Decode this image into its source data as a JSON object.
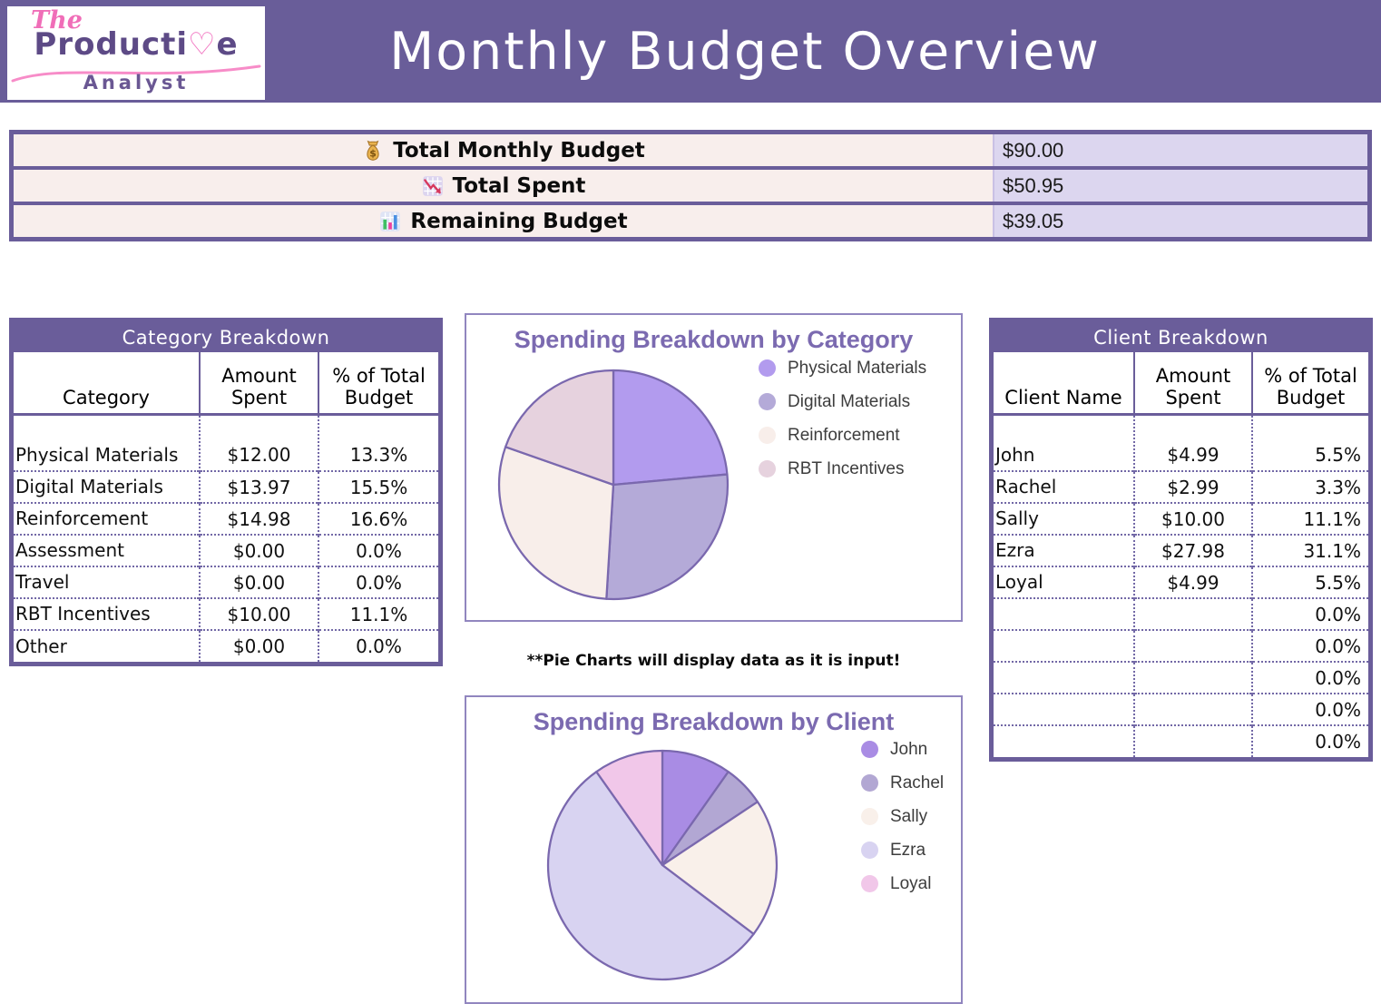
{
  "header": {
    "title": "Monthly Budget Overview",
    "logo": {
      "the": "The",
      "brand_pre": "Producti",
      "brand_heart": "♡",
      "brand_post": "e",
      "sub": "Analyst"
    }
  },
  "summary": {
    "rows": [
      {
        "icon": "money-bag-icon",
        "label": "Total Monthly Budget",
        "value": "$90.00"
      },
      {
        "icon": "chart-down-icon",
        "label": "Total Spent",
        "value": "$50.95"
      },
      {
        "icon": "bar-chart-icon",
        "label": "Remaining Budget",
        "value": "$39.05"
      }
    ]
  },
  "category_table": {
    "title": "Category Breakdown",
    "headers": [
      "Category",
      "Amount Spent",
      "% of Total Budget"
    ],
    "rows": [
      {
        "category": "Physical Materials",
        "amount": "$12.00",
        "percent": "13.3%"
      },
      {
        "category": "Digital Materials",
        "amount": "$13.97",
        "percent": "15.5%"
      },
      {
        "category": "Reinforcement",
        "amount": "$14.98",
        "percent": "16.6%"
      },
      {
        "category": "Assessment",
        "amount": "$0.00",
        "percent": "0.0%"
      },
      {
        "category": "Travel",
        "amount": "$0.00",
        "percent": "0.0%"
      },
      {
        "category": "RBT Incentives",
        "amount": "$10.00",
        "percent": "11.1%"
      },
      {
        "category": "Other",
        "amount": "$0.00",
        "percent": "0.0%"
      }
    ]
  },
  "client_table": {
    "title": "Client Breakdown",
    "headers": [
      "Client Name",
      "Amount Spent",
      "% of Total Budget"
    ],
    "rows": [
      {
        "name": "John",
        "amount": "$4.99",
        "percent": "5.5%"
      },
      {
        "name": "Rachel",
        "amount": "$2.99",
        "percent": "3.3%"
      },
      {
        "name": "Sally",
        "amount": "$10.00",
        "percent": "11.1%"
      },
      {
        "name": "Ezra",
        "amount": "$27.98",
        "percent": "31.1%"
      },
      {
        "name": "Loyal",
        "amount": "$4.99",
        "percent": "5.5%"
      },
      {
        "name": "",
        "amount": "",
        "percent": "0.0%"
      },
      {
        "name": "",
        "amount": "",
        "percent": "0.0%"
      },
      {
        "name": "",
        "amount": "",
        "percent": "0.0%"
      },
      {
        "name": "",
        "amount": "",
        "percent": "0.0%"
      },
      {
        "name": "",
        "amount": "",
        "percent": "0.0%"
      }
    ]
  },
  "note": "**Pie Charts will display data as it is input!",
  "chart_data": [
    {
      "type": "pie",
      "title": "Spending Breakdown by Category",
      "labels": [
        "Physical Materials",
        "Digital Materials",
        "Reinforcement",
        "RBT Incentives"
      ],
      "values": [
        12.0,
        13.97,
        14.98,
        10.0
      ],
      "colors": [
        "#b29bee",
        "#b4aad8",
        "#f8eeea",
        "#e6d2de"
      ],
      "stroke": "#7a68ae",
      "start_angle_deg": 0,
      "direction": "clockwise",
      "legend_position": "right"
    },
    {
      "type": "pie",
      "title": "Spending Breakdown by Client",
      "labels": [
        "John",
        "Rachel",
        "Sally",
        "Ezra",
        "Loyal"
      ],
      "values": [
        4.99,
        2.99,
        10.0,
        27.98,
        4.99
      ],
      "colors": [
        "#a98ce4",
        "#b2a7d3",
        "#f9f0ea",
        "#d8d3f1",
        "#f1c7e9"
      ],
      "stroke": "#7a68ae",
      "start_angle_deg": 0,
      "direction": "clockwise",
      "legend_position": "right"
    }
  ],
  "colors": {
    "banner_purple": "#695d99",
    "table_border_purple": "#6a5d9a",
    "summary_label_bg": "#f8eeec",
    "summary_value_bg": "#dcd6ef",
    "amount_pink": "#f973d2",
    "chart_title_purple": "#7b6ab0"
  }
}
